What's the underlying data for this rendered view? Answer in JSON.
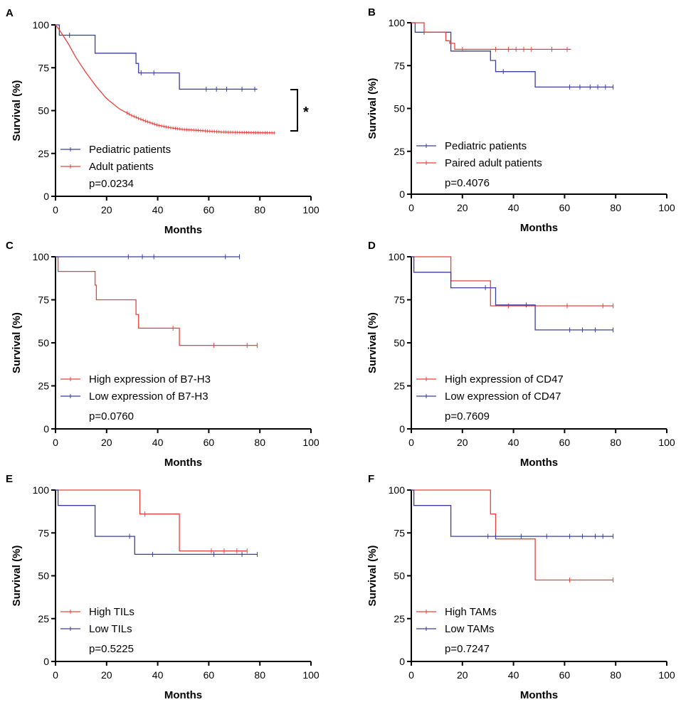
{
  "colors": {
    "red": "#e8413c",
    "blue": "#3b3f9a"
  },
  "chart_data": [
    {
      "panel": "A",
      "type": "line",
      "xlabel": "Months",
      "ylabel": "Survival (%)",
      "xlim": [
        0,
        100
      ],
      "ylim": [
        0,
        100
      ],
      "xticks": [
        0,
        20,
        40,
        60,
        80,
        100
      ],
      "yticks": [
        0,
        25,
        50,
        75,
        100
      ],
      "pvalue": "p=0.0234",
      "annotation": "*",
      "series": [
        {
          "name": "Pediatric patients",
          "color": "blue",
          "x": [
            0,
            1.5,
            1.5,
            15.5,
            15.5,
            31.5,
            31.5,
            32.5,
            32.5,
            48.5,
            48.5,
            79
          ],
          "y": [
            100,
            100,
            94,
            94,
            83.5,
            83.5,
            77.5,
            77.5,
            72,
            72,
            62.5,
            62.5
          ],
          "censor_x": [
            5.5,
            33.5,
            38.5,
            59,
            63,
            67,
            73,
            78
          ]
        },
        {
          "name": "Adult patients",
          "color": "red",
          "x": [
            0,
            2,
            5,
            8,
            12,
            16,
            20,
            25,
            30,
            35,
            40,
            45,
            50,
            55,
            60,
            65,
            70,
            75,
            80,
            86
          ],
          "y": [
            100,
            96,
            89,
            81,
            72,
            64,
            57,
            51,
            47,
            44,
            41.5,
            40,
            39,
            38.5,
            38,
            37.5,
            37.3,
            37.2,
            37.1,
            37
          ],
          "censor_x": []
        }
      ]
    },
    {
      "panel": "B",
      "type": "line",
      "xlabel": "Months",
      "ylabel": "Survival (%)",
      "xlim": [
        0,
        100
      ],
      "ylim": [
        0,
        100
      ],
      "xticks": [
        0,
        20,
        40,
        60,
        80,
        100
      ],
      "yticks": [
        0,
        25,
        50,
        75,
        100
      ],
      "pvalue": "p=0.4076",
      "series": [
        {
          "name": "Pediatric patients",
          "color": "blue",
          "x": [
            0,
            1.5,
            1.5,
            15.5,
            15.5,
            31,
            31,
            33,
            33,
            48.5,
            48.5,
            79
          ],
          "y": [
            100,
            100,
            94.5,
            94.5,
            83.5,
            83.5,
            78,
            78,
            71.5,
            71.5,
            62.5,
            62.5
          ],
          "censor_x": [
            5,
            36,
            62,
            66,
            70,
            73,
            76,
            79
          ]
        },
        {
          "name": "Paired adult patients",
          "color": "red",
          "x": [
            0,
            5,
            5,
            13.5,
            13.5,
            15,
            15,
            17,
            17,
            62.5
          ],
          "y": [
            100,
            100,
            94.5,
            94.5,
            89.5,
            89.5,
            88,
            88,
            84.5,
            84.5
          ],
          "censor_x": [
            20,
            33,
            38,
            41,
            44,
            47,
            55,
            61
          ]
        }
      ]
    },
    {
      "panel": "C",
      "type": "line",
      "xlabel": "Months",
      "ylabel": "Survival (%)",
      "xlim": [
        0,
        100
      ],
      "ylim": [
        0,
        100
      ],
      "xticks": [
        0,
        20,
        40,
        60,
        80,
        100
      ],
      "yticks": [
        0,
        25,
        50,
        75,
        100
      ],
      "pvalue": "p=0.0760",
      "series": [
        {
          "name": "High expression of B7-H3",
          "color": "red",
          "x": [
            0,
            1,
            1,
            15.5,
            15.5,
            16,
            16,
            31.5,
            31.5,
            32.5,
            32.5,
            48.5,
            48.5,
            79
          ],
          "y": [
            100,
            100,
            91.5,
            91.5,
            83.5,
            83.5,
            75,
            75,
            66.5,
            66.5,
            58.5,
            58.5,
            48.5,
            48.5
          ],
          "censor_x": [
            46,
            62,
            75,
            79
          ]
        },
        {
          "name": "Low expression of B7-H3",
          "color": "blue",
          "x": [
            0,
            72
          ],
          "y": [
            100,
            100
          ],
          "censor_x": [
            28.5,
            34,
            38.5,
            66.5,
            72
          ]
        }
      ]
    },
    {
      "panel": "D",
      "type": "line",
      "xlabel": "Months",
      "ylabel": "Survival (%)",
      "xlim": [
        0,
        100
      ],
      "ylim": [
        0,
        100
      ],
      "xticks": [
        0,
        20,
        40,
        60,
        80,
        100
      ],
      "yticks": [
        0,
        25,
        50,
        75,
        100
      ],
      "pvalue": "p=0.7609",
      "series": [
        {
          "name": "High expression of CD47",
          "color": "red",
          "x": [
            0,
            15.5,
            15.5,
            31,
            31,
            79
          ],
          "y": [
            100,
            100,
            86,
            86,
            71.5,
            71.5
          ],
          "censor_x": [
            38,
            61,
            75,
            79
          ]
        },
        {
          "name": "Low expression of CD47",
          "color": "blue",
          "x": [
            0,
            1,
            1,
            15.5,
            15.5,
            33,
            33,
            48.5,
            48.5,
            79
          ],
          "y": [
            100,
            100,
            91,
            91,
            82,
            82,
            72,
            72,
            57.5,
            57.5
          ],
          "censor_x": [
            29,
            45,
            62,
            67,
            72,
            79
          ]
        }
      ]
    },
    {
      "panel": "E",
      "type": "line",
      "xlabel": "Months",
      "ylabel": "Survival (%)",
      "xlim": [
        0,
        100
      ],
      "ylim": [
        0,
        100
      ],
      "xticks": [
        0,
        20,
        40,
        60,
        80,
        100
      ],
      "yticks": [
        0,
        25,
        50,
        75,
        100
      ],
      "pvalue": "p=0.5225",
      "series": [
        {
          "name": "High TILs",
          "color": "red",
          "x": [
            0,
            33,
            33,
            48.5,
            48.5,
            75
          ],
          "y": [
            100,
            100,
            86,
            86,
            64.5,
            64.5
          ],
          "censor_x": [
            35,
            61,
            66,
            71,
            75
          ]
        },
        {
          "name": "Low TILs",
          "color": "blue",
          "x": [
            0,
            1,
            1,
            15.5,
            15.5,
            31,
            31,
            79
          ],
          "y": [
            100,
            100,
            91,
            91,
            73,
            73,
            62.5,
            62.5
          ],
          "censor_x": [
            29,
            38,
            62,
            73,
            79
          ]
        }
      ]
    },
    {
      "panel": "F",
      "type": "line",
      "xlabel": "Months",
      "ylabel": "Survival (%)",
      "xlim": [
        0,
        100
      ],
      "ylim": [
        0,
        100
      ],
      "xticks": [
        0,
        20,
        40,
        60,
        80,
        100
      ],
      "yticks": [
        0,
        25,
        50,
        75,
        100
      ],
      "pvalue": "p=0.7247",
      "series": [
        {
          "name": "High TAMs",
          "color": "red",
          "x": [
            0,
            31,
            31,
            33,
            33,
            48.5,
            48.5,
            79
          ],
          "y": [
            100,
            100,
            86,
            86,
            71.5,
            71.5,
            47.5,
            47.5
          ],
          "censor_x": [
            62,
            79
          ]
        },
        {
          "name": "Low TAMs",
          "color": "blue",
          "x": [
            0,
            1,
            1,
            15.5,
            15.5,
            79
          ],
          "y": [
            100,
            100,
            91,
            91,
            73,
            73
          ],
          "censor_x": [
            30,
            33,
            43,
            53,
            62,
            67,
            72,
            75,
            79
          ]
        }
      ]
    }
  ]
}
